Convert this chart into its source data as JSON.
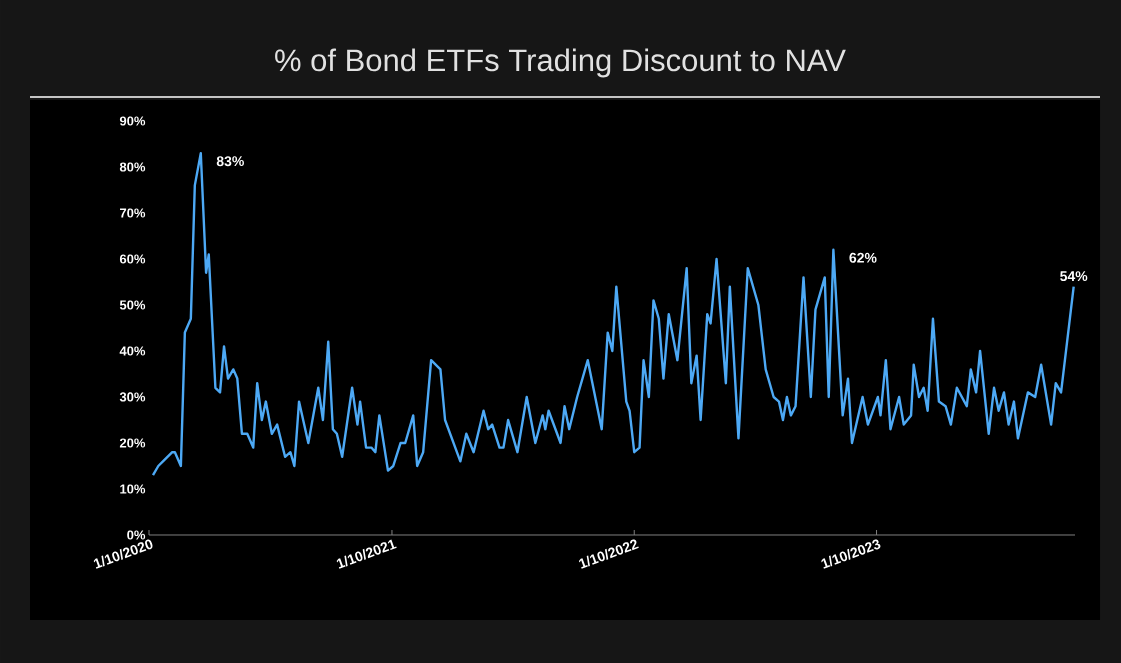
{
  "chart_data": {
    "type": "line",
    "title": "% of Bond ETFs Trading Discount to NAV",
    "x": [
      "2020-01-16",
      "2020-01-24",
      "2020-01-31",
      "2020-02-14",
      "2020-02-18",
      "2020-02-27",
      "2020-03-04",
      "2020-03-13",
      "2020-03-19",
      "2020-03-28",
      "2020-04-05",
      "2020-04-09",
      "2020-04-19",
      "2020-04-26",
      "2020-05-02",
      "2020-05-08",
      "2020-05-16",
      "2020-05-22",
      "2020-05-29",
      "2020-06-06",
      "2020-06-15",
      "2020-06-21",
      "2020-06-28",
      "2020-07-04",
      "2020-07-13",
      "2020-07-21",
      "2020-08-02",
      "2020-08-10",
      "2020-08-16",
      "2020-08-23",
      "2020-09-06",
      "2020-09-21",
      "2020-09-28",
      "2020-10-06",
      "2020-10-13",
      "2020-10-19",
      "2020-10-27",
      "2020-11-11",
      "2020-11-19",
      "2020-11-23",
      "2020-12-02",
      "2020-12-10",
      "2020-12-16",
      "2020-12-22",
      "2021-01-04",
      "2021-01-12",
      "2021-01-23",
      "2021-01-30",
      "2021-02-11",
      "2021-02-17",
      "2021-02-26",
      "2021-03-10",
      "2021-03-24",
      "2021-03-31",
      "2021-04-23",
      "2021-05-02",
      "2021-05-13",
      "2021-05-28",
      "2021-06-04",
      "2021-06-10",
      "2021-06-21",
      "2021-06-27",
      "2021-07-04",
      "2021-07-18",
      "2021-08-01",
      "2021-08-14",
      "2021-08-25",
      "2021-08-29",
      "2021-09-03",
      "2021-09-21",
      "2021-09-27",
      "2021-10-04",
      "2021-10-16",
      "2021-11-01",
      "2021-11-22",
      "2021-12-01",
      "2021-12-08",
      "2021-12-14",
      "2021-12-29",
      "2022-01-03",
      "2022-01-10",
      "2022-01-18",
      "2022-01-24",
      "2022-02-01",
      "2022-02-08",
      "2022-02-16",
      "2022-02-23",
      "2022-03-03",
      "2022-03-16",
      "2022-03-30",
      "2022-04-06",
      "2022-04-14",
      "2022-04-20",
      "2022-04-30",
      "2022-05-05",
      "2022-05-14",
      "2022-05-28",
      "2022-06-03",
      "2022-06-16",
      "2022-06-30",
      "2022-07-16",
      "2022-07-27",
      "2022-08-08",
      "2022-08-16",
      "2022-08-22",
      "2022-08-28",
      "2022-09-03",
      "2022-09-10",
      "2022-09-22",
      "2022-10-03",
      "2022-10-10",
      "2022-10-24",
      "2022-10-30",
      "2022-11-06",
      "2022-11-20",
      "2022-11-28",
      "2022-12-04",
      "2022-12-20",
      "2022-12-28",
      "2023-01-12",
      "2023-01-16",
      "2023-01-24",
      "2023-01-31",
      "2023-02-13",
      "2023-02-20",
      "2023-03-03",
      "2023-03-07",
      "2023-03-15",
      "2023-03-22",
      "2023-03-28",
      "2023-04-05",
      "2023-04-14",
      "2023-04-24",
      "2023-05-02",
      "2023-05-11",
      "2023-05-26",
      "2023-06-01",
      "2023-06-09",
      "2023-06-15",
      "2023-06-28",
      "2023-07-06",
      "2023-07-13",
      "2023-07-21",
      "2023-07-28",
      "2023-08-05",
      "2023-08-11",
      "2023-08-26",
      "2023-09-06",
      "2023-09-15",
      "2023-09-30",
      "2023-10-07",
      "2023-10-15",
      "2023-11-03"
    ],
    "series": [
      {
        "color": "#4da9f5",
        "values": [
          13,
          15,
          16,
          18,
          18,
          15,
          44,
          47,
          76,
          83,
          57,
          61,
          32,
          31,
          41,
          34,
          36,
          34,
          22,
          22,
          19,
          33,
          25,
          29,
          22,
          24,
          17,
          18,
          15,
          29,
          20,
          32,
          25,
          42,
          23,
          22,
          17,
          32,
          24,
          29,
          19,
          19,
          18,
          26,
          14,
          15,
          20,
          20,
          26,
          15,
          18,
          38,
          36,
          25,
          16,
          22,
          18,
          27,
          23,
          24,
          19,
          19,
          25,
          18,
          30,
          20,
          26,
          23,
          27,
          20,
          28,
          23,
          30,
          38,
          23,
          44,
          40,
          54,
          29,
          27,
          18,
          19,
          38,
          30,
          51,
          47,
          34,
          48,
          38,
          58,
          33,
          39,
          25,
          48,
          46,
          60,
          33,
          54,
          21,
          58,
          50,
          36,
          30,
          29,
          25,
          30,
          26,
          28,
          56,
          30,
          49,
          56,
          30,
          62,
          26,
          34,
          20,
          30,
          24,
          30,
          26,
          38,
          23,
          30,
          24,
          26,
          37,
          30,
          32,
          27,
          47,
          29,
          28,
          24,
          32,
          28,
          36,
          31,
          40,
          22,
          32,
          27,
          31,
          24,
          29,
          21,
          31,
          30,
          37,
          24,
          33,
          31,
          54
        ]
      }
    ],
    "xlim": [
      "2020-01-10",
      "2023-11-05"
    ],
    "xticks": [
      {
        "value": "2020-01-10",
        "label": "1/10/2020"
      },
      {
        "value": "2021-01-10",
        "label": "1/10/2021"
      },
      {
        "value": "2022-01-10",
        "label": "1/10/2022"
      },
      {
        "value": "2023-01-10",
        "label": "1/10/2023"
      }
    ],
    "ylim": [
      0,
      90
    ],
    "yticks": [
      {
        "value": 0,
        "label": "0%"
      },
      {
        "value": 10,
        "label": "10%"
      },
      {
        "value": 20,
        "label": "20%"
      },
      {
        "value": 30,
        "label": "30%"
      },
      {
        "value": 40,
        "label": "40%"
      },
      {
        "value": 50,
        "label": "50%"
      },
      {
        "value": 60,
        "label": "60%"
      },
      {
        "value": 70,
        "label": "70%"
      },
      {
        "value": 80,
        "label": "80%"
      },
      {
        "value": 90,
        "label": "90%"
      }
    ],
    "annotations": [
      {
        "text": "83%",
        "x": "2020-03-28",
        "y": 83
      },
      {
        "text": "62%",
        "x": "2022-11-06",
        "y": 62
      },
      {
        "text": "54%",
        "x": "2023-11-03",
        "y": 54
      }
    ]
  }
}
